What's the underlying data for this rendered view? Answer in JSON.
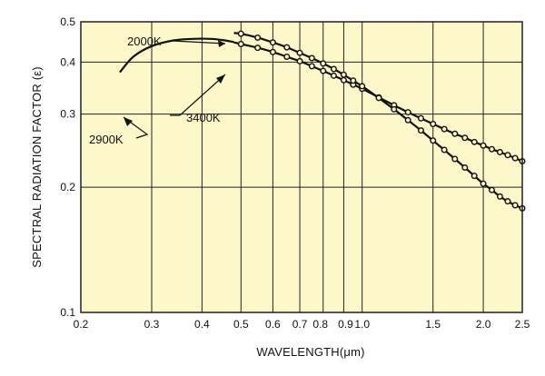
{
  "chart_data": {
    "type": "line",
    "xlabel": "WAVELENGTH(μm)",
    "ylabel": "SPECTRAL RADIATION FACTOR (ε)",
    "xscale": "log",
    "yscale": "log",
    "xlim": [
      0.2,
      2.5
    ],
    "ylim": [
      0.1,
      0.5
    ],
    "x_ticks": [
      {
        "value": 0.2,
        "label": "0.2"
      },
      {
        "value": 0.3,
        "label": "0.3"
      },
      {
        "value": 0.4,
        "label": "0.4"
      },
      {
        "value": 0.5,
        "label": "0.5"
      },
      {
        "value": 0.6,
        "label": "0.6"
      },
      {
        "value": 0.7,
        "label": "0.7"
      },
      {
        "value": 0.8,
        "label": "0.8"
      },
      {
        "value": 0.9,
        "label": "0.9"
      },
      {
        "value": 1.0,
        "label": "1.0"
      },
      {
        "value": 1.5,
        "label": "1.5"
      },
      {
        "value": 2.0,
        "label": "2.0"
      },
      {
        "value": 2.5,
        "label": "2.5"
      }
    ],
    "y_ticks": [
      {
        "value": 0.1,
        "label": "0.1"
      },
      {
        "value": 0.2,
        "label": "0.2"
      },
      {
        "value": 0.3,
        "label": "0.3"
      },
      {
        "value": 0.4,
        "label": "0.4"
      },
      {
        "value": 0.5,
        "label": "0.5"
      }
    ],
    "grid": true,
    "background_color": "#fdf8c9",
    "line_color": "#111111",
    "series": [
      {
        "name": "2900K",
        "markers": false,
        "x": [
          0.25,
          0.27,
          0.3,
          0.34,
          0.38,
          0.42,
          0.45,
          0.48
        ],
        "y": [
          0.378,
          0.412,
          0.437,
          0.451,
          0.455,
          0.455,
          0.452,
          0.447
        ]
      },
      {
        "name": "3400K",
        "markers": true,
        "x": [
          0.48,
          0.5,
          0.55,
          0.6,
          0.65,
          0.7,
          0.75,
          0.8,
          0.85,
          0.9,
          0.95,
          1.0,
          1.1,
          1.2,
          1.3,
          1.4,
          1.5,
          1.6,
          1.7,
          1.8,
          1.9,
          2.0,
          2.1,
          2.2,
          2.3,
          2.4,
          2.5
        ],
        "y": [
          0.446,
          0.442,
          0.433,
          0.423,
          0.412,
          0.402,
          0.391,
          0.381,
          0.371,
          0.362,
          0.353,
          0.345,
          0.329,
          0.315,
          0.303,
          0.293,
          0.284,
          0.276,
          0.269,
          0.263,
          0.257,
          0.252,
          0.247,
          0.243,
          0.239,
          0.235,
          0.231
        ]
      },
      {
        "name": "2000K",
        "markers": true,
        "x": [
          0.48,
          0.5,
          0.55,
          0.6,
          0.65,
          0.7,
          0.75,
          0.8,
          0.85,
          0.9,
          0.95,
          1.0,
          1.1,
          1.2,
          1.3,
          1.4,
          1.5,
          1.6,
          1.7,
          1.8,
          1.9,
          2.0,
          2.1,
          2.2,
          2.3,
          2.4,
          2.5
        ],
        "y": [
          0.47,
          0.468,
          0.458,
          0.446,
          0.434,
          0.421,
          0.409,
          0.397,
          0.385,
          0.373,
          0.361,
          0.35,
          0.328,
          0.308,
          0.29,
          0.274,
          0.259,
          0.246,
          0.234,
          0.223,
          0.213,
          0.204,
          0.197,
          0.19,
          0.185,
          0.181,
          0.178
        ]
      }
    ],
    "annotations": [
      {
        "text": "2000K",
        "points_to": "2000K"
      },
      {
        "text": "3400K",
        "points_to": "3400K"
      },
      {
        "text": "2900K",
        "points_to": "2900K"
      }
    ]
  }
}
